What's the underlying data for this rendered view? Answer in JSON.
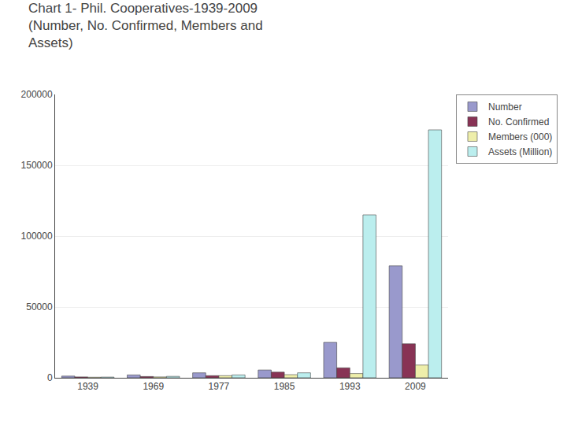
{
  "chart_data": {
    "type": "bar",
    "title": "Chart 1- Phil. Cooperatives-1939-2009\n(Number, No. Confirmed, Members and\nAssets)",
    "categories": [
      "1939",
      "1969",
      "1977",
      "1985",
      "1993",
      "2009"
    ],
    "series": [
      {
        "name": "Number",
        "color": "#9999CC",
        "values": [
          1200,
          2000,
          3500,
          5500,
          25000,
          79000
        ]
      },
      {
        "name": "No. Confirmed",
        "color": "#883355",
        "values": [
          600,
          900,
          1500,
          4000,
          7000,
          24000
        ]
      },
      {
        "name": "Members (000)",
        "color": "#EEEEAA",
        "values": [
          400,
          600,
          1500,
          2200,
          3000,
          9000
        ]
      },
      {
        "name": "Assets (Million)",
        "color": "#BBEEEE",
        "values": [
          500,
          1000,
          2000,
          3500,
          115000,
          175000
        ]
      }
    ],
    "ylim": [
      0,
      200000
    ],
    "yticks": [
      0,
      50000,
      100000,
      150000,
      200000
    ],
    "grid": true,
    "legend": "upper right"
  }
}
